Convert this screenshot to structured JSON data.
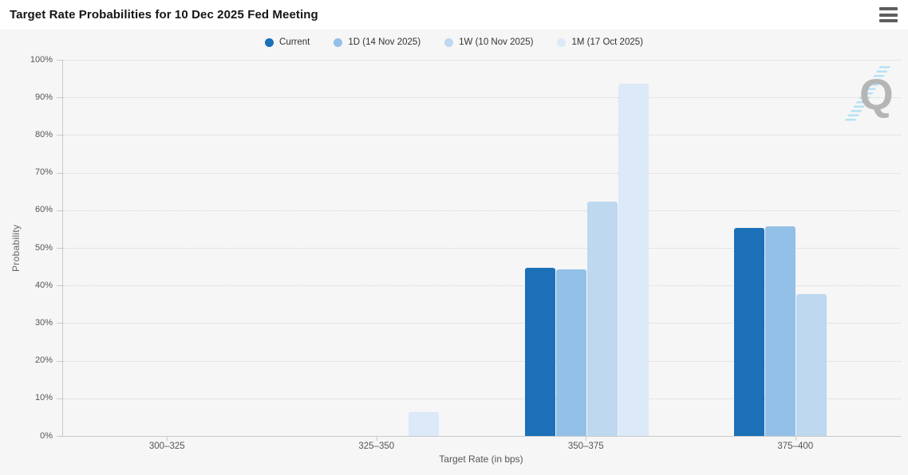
{
  "header": {
    "title": "Target Rate Probabilities for 10 Dec 2025 Fed Meeting",
    "menu_icon": "hamburger-menu"
  },
  "chart_data": {
    "type": "bar",
    "title": "Target Rate Probabilities for 10 Dec 2025 Fed Meeting",
    "categories": [
      "300–325",
      "325–350",
      "350–375",
      "375–400"
    ],
    "series": [
      {
        "name": "Current",
        "color": "#1c70b8",
        "values": [
          0,
          0,
          44.7,
          55.3
        ]
      },
      {
        "name": "1D (14 Nov 2025)",
        "color": "#93c0e7",
        "values": [
          0,
          0,
          44.3,
          55.7
        ]
      },
      {
        "name": "1W (10 Nov 2025)",
        "color": "#bdd8ef",
        "values": [
          0,
          0,
          62.3,
          37.7
        ]
      },
      {
        "name": "1M (17 Oct 2025)",
        "color": "#dbe9f8",
        "values": [
          0,
          6.3,
          93.7,
          0
        ]
      }
    ],
    "xlabel": "Target Rate (in bps)",
    "ylabel": "Probability",
    "ylim": [
      0,
      100
    ],
    "ytick_step": 10,
    "ytick_suffix": "%",
    "grid": "dotted-horizontal",
    "legend_position": "top-center"
  },
  "watermark": {
    "letter": "Q"
  }
}
